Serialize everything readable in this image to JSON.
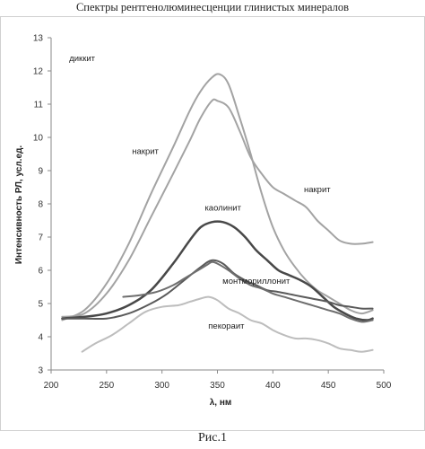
{
  "title": "Спектры рентгенолюминесценции глинистых минералов",
  "caption": "Рис.1",
  "chart_data": {
    "type": "line",
    "title": "Спектры рентгенолюминесценции глинистых минералов",
    "xlabel": "λ, нм",
    "ylabel": "Интенсивность РЛ, усл.ед.",
    "xlim": [
      200,
      500
    ],
    "ylim": [
      3,
      13
    ],
    "xticks": [
      200,
      250,
      300,
      350,
      400,
      450,
      500
    ],
    "yticks": [
      3,
      4,
      5,
      6,
      7,
      8,
      9,
      10,
      11,
      12,
      13
    ],
    "grid": false,
    "legend": "none",
    "series": [
      {
        "name": "диккит",
        "color": "#a3a3a3",
        "width": 2,
        "label_at": [
          228,
          12.3
        ],
        "points": [
          [
            210,
            4.5
          ],
          [
            230,
            4.8
          ],
          [
            250,
            5.6
          ],
          [
            270,
            6.8
          ],
          [
            290,
            8.3
          ],
          [
            310,
            9.7
          ],
          [
            325,
            10.8
          ],
          [
            335,
            11.4
          ],
          [
            345,
            11.8
          ],
          [
            352,
            11.9
          ],
          [
            360,
            11.6
          ],
          [
            370,
            10.6
          ],
          [
            380,
            9.5
          ],
          [
            390,
            8.3
          ],
          [
            400,
            7.3
          ],
          [
            410,
            6.6
          ],
          [
            420,
            6.1
          ],
          [
            430,
            5.7
          ],
          [
            440,
            5.4
          ],
          [
            450,
            5.2
          ],
          [
            460,
            5.0
          ],
          [
            470,
            4.8
          ],
          [
            480,
            4.7
          ],
          [
            490,
            4.8
          ]
        ]
      },
      {
        "name": "накрит",
        "color": "#a3a3a3",
        "width": 2,
        "label_at": [
          285,
          9.5
        ],
        "points": [
          [
            210,
            4.6
          ],
          [
            230,
            4.7
          ],
          [
            250,
            5.3
          ],
          [
            270,
            6.3
          ],
          [
            290,
            7.6
          ],
          [
            310,
            8.9
          ],
          [
            325,
            9.9
          ],
          [
            335,
            10.6
          ],
          [
            345,
            11.1
          ],
          [
            350,
            11.1
          ],
          [
            360,
            10.9
          ],
          [
            370,
            10.2
          ],
          [
            380,
            9.4
          ],
          [
            390,
            8.9
          ],
          [
            400,
            8.5
          ],
          [
            410,
            8.3
          ],
          [
            420,
            8.1
          ],
          [
            430,
            7.9
          ],
          [
            440,
            7.5
          ],
          [
            450,
            7.2
          ],
          [
            460,
            6.9
          ],
          [
            470,
            6.8
          ],
          [
            480,
            6.8
          ],
          [
            490,
            6.85
          ]
        ]
      },
      {
        "name": "каолинит",
        "color": "#484848",
        "width": 2.5,
        "label_at": [
          355,
          7.8
        ],
        "points": [
          [
            210,
            4.55
          ],
          [
            230,
            4.6
          ],
          [
            250,
            4.7
          ],
          [
            270,
            4.95
          ],
          [
            290,
            5.4
          ],
          [
            310,
            6.2
          ],
          [
            325,
            6.9
          ],
          [
            335,
            7.3
          ],
          [
            345,
            7.45
          ],
          [
            355,
            7.45
          ],
          [
            365,
            7.3
          ],
          [
            375,
            7.0
          ],
          [
            385,
            6.6
          ],
          [
            395,
            6.3
          ],
          [
            405,
            6.0
          ],
          [
            415,
            5.85
          ],
          [
            425,
            5.7
          ],
          [
            435,
            5.5
          ],
          [
            445,
            5.2
          ],
          [
            455,
            4.9
          ],
          [
            465,
            4.7
          ],
          [
            475,
            4.55
          ],
          [
            485,
            4.5
          ],
          [
            490,
            4.55
          ]
        ]
      },
      {
        "name": "монтмориллонит",
        "color": "#5a5a5a",
        "width": 2,
        "label_at": [
          385,
          5.6
        ],
        "points": [
          [
            210,
            4.55
          ],
          [
            230,
            4.55
          ],
          [
            250,
            4.55
          ],
          [
            270,
            4.7
          ],
          [
            290,
            5.0
          ],
          [
            305,
            5.3
          ],
          [
            320,
            5.7
          ],
          [
            335,
            6.1
          ],
          [
            345,
            6.3
          ],
          [
            355,
            6.2
          ],
          [
            365,
            5.9
          ],
          [
            375,
            5.7
          ],
          [
            385,
            5.55
          ],
          [
            395,
            5.4
          ],
          [
            405,
            5.35
          ],
          [
            420,
            5.25
          ],
          [
            435,
            5.15
          ],
          [
            450,
            5.05
          ],
          [
            460,
            4.95
          ],
          [
            470,
            4.9
          ],
          [
            480,
            4.85
          ],
          [
            490,
            4.85
          ]
        ]
      },
      {
        "name": "",
        "color": "#6e6e6e",
        "width": 2,
        "label_at": null,
        "points": [
          [
            265,
            5.2
          ],
          [
            280,
            5.25
          ],
          [
            295,
            5.35
          ],
          [
            310,
            5.55
          ],
          [
            320,
            5.75
          ],
          [
            330,
            5.95
          ],
          [
            340,
            6.15
          ],
          [
            345,
            6.25
          ],
          [
            350,
            6.2
          ],
          [
            360,
            6.0
          ],
          [
            370,
            5.75
          ],
          [
            380,
            5.55
          ],
          [
            390,
            5.45
          ],
          [
            400,
            5.3
          ],
          [
            410,
            5.2
          ],
          [
            420,
            5.1
          ],
          [
            430,
            5.0
          ],
          [
            440,
            4.9
          ],
          [
            450,
            4.8
          ],
          [
            460,
            4.7
          ],
          [
            470,
            4.55
          ],
          [
            480,
            4.45
          ],
          [
            490,
            4.5
          ]
        ]
      },
      {
        "name": "пекораит",
        "color": "#bdbdbd",
        "width": 2,
        "label_at": [
          358,
          4.25
        ],
        "points": [
          [
            228,
            3.55
          ],
          [
            240,
            3.8
          ],
          [
            255,
            4.05
          ],
          [
            270,
            4.4
          ],
          [
            285,
            4.75
          ],
          [
            300,
            4.9
          ],
          [
            315,
            4.95
          ],
          [
            325,
            5.05
          ],
          [
            335,
            5.15
          ],
          [
            342,
            5.2
          ],
          [
            350,
            5.1
          ],
          [
            360,
            4.85
          ],
          [
            370,
            4.7
          ],
          [
            380,
            4.5
          ],
          [
            390,
            4.4
          ],
          [
            400,
            4.2
          ],
          [
            410,
            4.05
          ],
          [
            420,
            3.95
          ],
          [
            430,
            3.95
          ],
          [
            440,
            3.9
          ],
          [
            450,
            3.8
          ],
          [
            460,
            3.65
          ],
          [
            470,
            3.6
          ],
          [
            480,
            3.55
          ],
          [
            490,
            3.6
          ]
        ]
      }
    ]
  }
}
